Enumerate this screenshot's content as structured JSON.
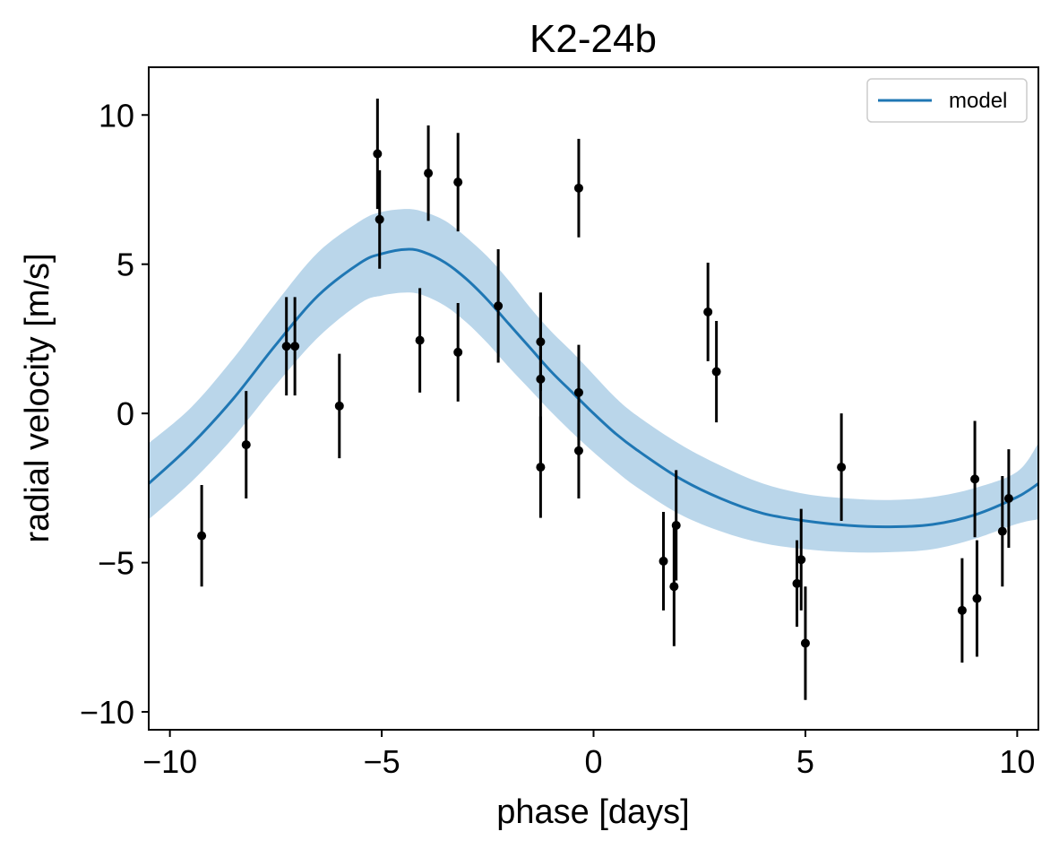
{
  "chart_data": {
    "type": "scatter",
    "title": "K2-24b",
    "xlabel": "phase [days]",
    "ylabel": "radial velocity [m/s]",
    "xlim": [
      -10.5,
      10.5
    ],
    "ylim": [
      -10.6,
      11.6
    ],
    "xticks": [
      -10,
      -5,
      0,
      5,
      10
    ],
    "xtick_labels": [
      "−10",
      "−5",
      "0",
      "5",
      "10"
    ],
    "yticks": [
      -10,
      -5,
      0,
      5,
      10
    ],
    "ytick_labels": [
      "−10",
      "−5",
      "0",
      "5",
      "10"
    ],
    "grid": false,
    "legend": {
      "position": "top-right",
      "entries": [
        "model"
      ]
    },
    "colors": {
      "model": "#1f77b4",
      "band": "#bad6ea",
      "data": "#000000"
    },
    "series": [
      {
        "name": "model",
        "kind": "line",
        "x": [
          -10.5,
          -9.5,
          -8.5,
          -7.5,
          -6.5,
          -5.5,
          -5.0,
          -4.4,
          -4.0,
          -3.5,
          -3.0,
          -2.5,
          -2.0,
          -1.5,
          -1.0,
          -0.5,
          0.0,
          0.5,
          1.0,
          2.0,
          3.0,
          4.0,
          5.0,
          6.0,
          7.0,
          8.0,
          9.0,
          10.0,
          10.5
        ],
        "y": [
          -2.35,
          -1.05,
          0.5,
          2.3,
          3.95,
          5.05,
          5.35,
          5.5,
          5.4,
          5.05,
          4.5,
          3.8,
          3.0,
          2.2,
          1.4,
          0.7,
          0.0,
          -0.65,
          -1.2,
          -2.15,
          -2.85,
          -3.35,
          -3.6,
          -3.75,
          -3.8,
          -3.72,
          -3.4,
          -2.8,
          -2.35
        ],
        "band_lower": [
          -3.55,
          -2.3,
          -0.8,
          0.95,
          2.55,
          3.7,
          3.95,
          4.05,
          3.95,
          3.6,
          3.05,
          2.35,
          1.55,
          0.8,
          0.05,
          -0.65,
          -1.3,
          -1.9,
          -2.45,
          -3.35,
          -3.95,
          -4.35,
          -4.55,
          -4.65,
          -4.65,
          -4.55,
          -4.2,
          -3.7,
          -3.55
        ],
        "band_upper": [
          -1.0,
          0.2,
          1.85,
          3.7,
          5.4,
          6.45,
          6.75,
          6.85,
          6.75,
          6.45,
          5.9,
          5.25,
          4.45,
          3.55,
          2.75,
          2.05,
          1.3,
          0.55,
          -0.05,
          -1.0,
          -1.75,
          -2.35,
          -2.7,
          -2.85,
          -2.9,
          -2.8,
          -2.5,
          -1.95,
          -1.0
        ]
      },
      {
        "name": "",
        "kind": "errorbar",
        "points": [
          {
            "x": -9.25,
            "y": -4.1,
            "yerr": 1.7
          },
          {
            "x": -8.2,
            "y": -1.05,
            "yerr": 1.8
          },
          {
            "x": -7.25,
            "y": 2.25,
            "yerr": 1.65
          },
          {
            "x": -7.05,
            "y": 2.25,
            "yerr": 1.65
          },
          {
            "x": -6.0,
            "y": 0.25,
            "yerr": 1.75
          },
          {
            "x": -5.1,
            "y": 8.7,
            "yerr": 1.85
          },
          {
            "x": -5.05,
            "y": 6.5,
            "yerr": 1.65
          },
          {
            "x": -4.1,
            "y": 2.45,
            "yerr": 1.75
          },
          {
            "x": -3.9,
            "y": 8.05,
            "yerr": 1.6
          },
          {
            "x": -3.2,
            "y": 7.75,
            "yerr": 1.65
          },
          {
            "x": -3.2,
            "y": 2.05,
            "yerr": 1.65
          },
          {
            "x": -2.25,
            "y": 3.6,
            "yerr": 1.9
          },
          {
            "x": -1.25,
            "y": 2.4,
            "yerr": 1.65
          },
          {
            "x": -1.25,
            "y": 1.15,
            "yerr": 2.9
          },
          {
            "x": -1.25,
            "y": -1.8,
            "yerr": 1.7
          },
          {
            "x": -0.35,
            "y": 7.55,
            "yerr": 1.65
          },
          {
            "x": -0.35,
            "y": 0.7,
            "yerr": 1.6
          },
          {
            "x": -0.35,
            "y": -1.25,
            "yerr": 1.6
          },
          {
            "x": 1.65,
            "y": -4.95,
            "yerr": 1.65
          },
          {
            "x": 1.9,
            "y": -5.8,
            "yerr": 2.0
          },
          {
            "x": 1.95,
            "y": -3.75,
            "yerr": 1.85
          },
          {
            "x": 2.7,
            "y": 3.4,
            "yerr": 1.65
          },
          {
            "x": 2.9,
            "y": 1.4,
            "yerr": 1.7
          },
          {
            "x": 4.8,
            "y": -5.7,
            "yerr": 1.45
          },
          {
            "x": 4.9,
            "y": -4.9,
            "yerr": 1.7
          },
          {
            "x": 5.0,
            "y": -7.7,
            "yerr": 1.9
          },
          {
            "x": 5.85,
            "y": -1.8,
            "yerr": 1.8
          },
          {
            "x": 8.7,
            "y": -6.6,
            "yerr": 1.75
          },
          {
            "x": 9.0,
            "y": -2.2,
            "yerr": 1.95
          },
          {
            "x": 9.05,
            "y": -6.2,
            "yerr": 1.95
          },
          {
            "x": 9.65,
            "y": -3.95,
            "yerr": 1.85
          },
          {
            "x": 9.8,
            "y": -2.85,
            "yerr": 1.65
          }
        ]
      }
    ]
  }
}
